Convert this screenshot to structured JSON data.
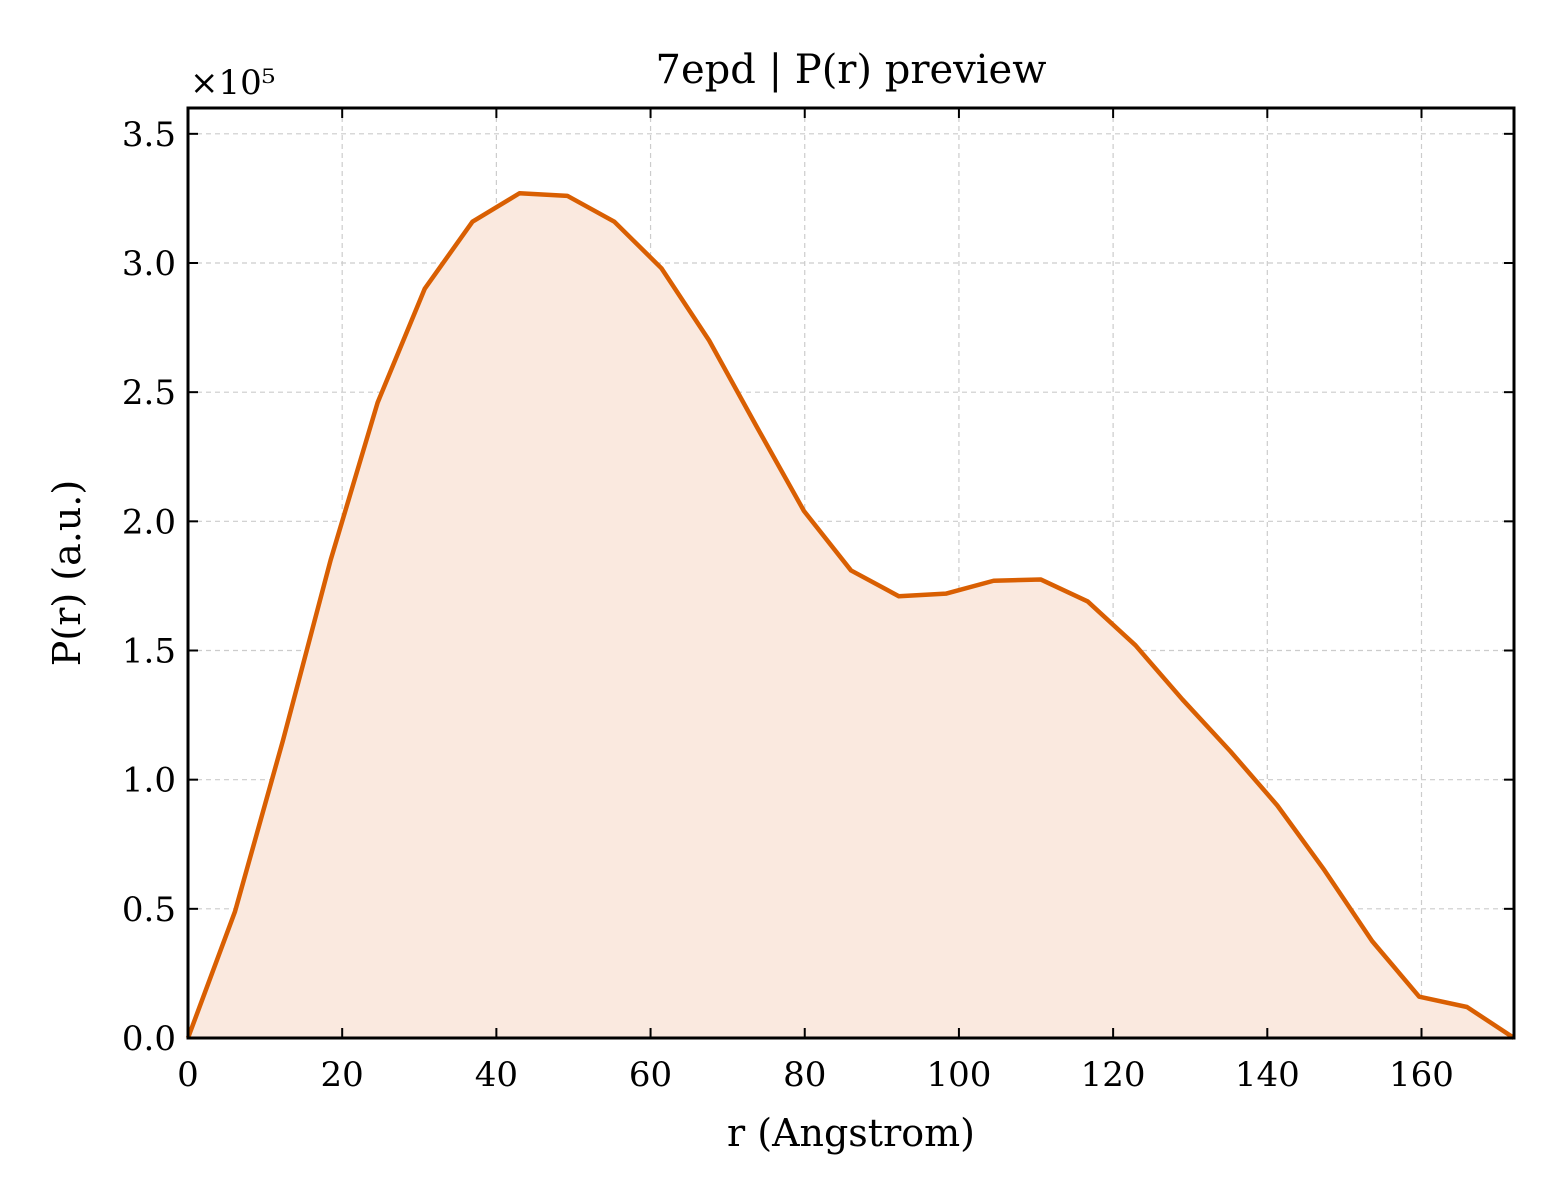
{
  "chart_data": {
    "type": "area",
    "title": "7epd | P(r) preview",
    "xlabel": "r (Angstrom)",
    "ylabel": "P(r) (a.u.)",
    "y_offset_label": "×10⁵",
    "y_scale": 100000,
    "xlim": [
      0,
      172
    ],
    "ylim": [
      0,
      3.6
    ],
    "xticks": [
      0,
      20,
      40,
      60,
      80,
      100,
      120,
      140,
      160
    ],
    "xtick_labels": [
      "0",
      "20",
      "40",
      "60",
      "80",
      "100",
      "120",
      "140",
      "160"
    ],
    "yticks": [
      0.0,
      0.5,
      1.0,
      1.5,
      2.0,
      2.5,
      3.0,
      3.5
    ],
    "ytick_labels": [
      "0.0",
      "0.5",
      "1.0",
      "1.5",
      "2.0",
      "2.5",
      "3.0",
      "3.5"
    ],
    "grid": true,
    "line_color": "#d95f02",
    "fill_color": "#fae9df",
    "series": [
      {
        "x": [
          0,
          6.1,
          12.3,
          18.5,
          24.6,
          30.7,
          36.9,
          43.0,
          49.2,
          55.3,
          61.4,
          67.6,
          73.7,
          79.9,
          86.0,
          92.2,
          98.3,
          104.5,
          110.6,
          116.7,
          122.9,
          129.0,
          135.2,
          141.3,
          147.4,
          153.6,
          159.7,
          165.9,
          172.0
        ],
        "values": [
          0.0,
          0.49,
          1.15,
          1.85,
          2.46,
          2.9,
          3.16,
          3.27,
          3.26,
          3.16,
          2.98,
          2.7,
          2.37,
          2.04,
          1.81,
          1.71,
          1.72,
          1.77,
          1.775,
          1.69,
          1.52,
          1.31,
          1.11,
          0.9,
          0.65,
          0.375,
          0.16,
          0.12,
          0.0
        ]
      }
    ]
  }
}
